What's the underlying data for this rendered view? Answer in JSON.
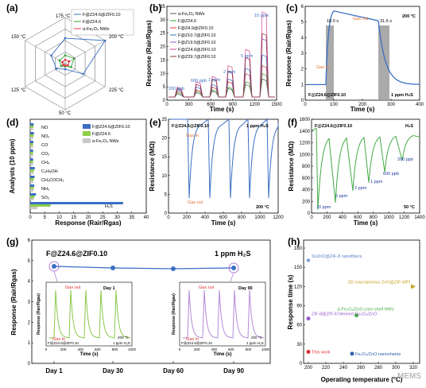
{
  "panels": {
    "a": {
      "label": "(a)",
      "legend": [
        "F@Z24.6@ZIF0.10",
        "F@Z24.6",
        "α-Fe₂O₃ NWs"
      ],
      "angles": [
        "175 °C",
        "200 °C",
        "225 °C",
        "50 °C",
        "125 °C",
        "150 °C"
      ],
      "series_colors": [
        "#3a6fc4",
        "#33a033",
        "#e03030"
      ]
    },
    "b": {
      "label": "(b)",
      "xlabel": "Time (s)",
      "ylabel": "Response (Rair/Rgas)",
      "legend": [
        "α-Fe₂O₃ NWs",
        "F@Z24.6",
        "F@Z4.9@ZIF0.10",
        "F@Z10.7@ZIF0.10",
        "F@Z19.5@ZIF0.10",
        "F@Z24.6@ZIF0.10",
        "F@Z29.7@ZIF0.10"
      ],
      "annotations": [
        "200 ppb",
        "600 ppb",
        "1 ppm",
        "2 ppm",
        "5 ppm",
        "10 ppm"
      ],
      "xticks": [
        "0",
        "300",
        "600",
        "900",
        "1200",
        "1500"
      ],
      "yticks": [
        "0",
        "5",
        "10",
        "15",
        "20",
        "25",
        "30",
        "35"
      ]
    },
    "c": {
      "label": "(c)",
      "xlabel": "Time (s)",
      "ylabel": "Response (Rair/Rgas)",
      "temp": "200 °C",
      "resp_time": "18.0 s",
      "rec_time": "31.6 s",
      "gas_in": "Gas in",
      "gas_out": "Gas out",
      "sample": "F@Z24.6@ZIF0.10",
      "conc": "1 ppm H₂S",
      "xticks": [
        "0",
        "100",
        "200",
        "300",
        "400"
      ],
      "yticks": [
        "0",
        "1",
        "2",
        "3",
        "4",
        "5",
        "6"
      ]
    },
    "d": {
      "label": "(d)",
      "xlabel": "Response (Rair/Rgas)",
      "ylabel": "Analysts (10 ppm)",
      "legend": [
        "F@Z24.6@ZIF0.10",
        "F@Z24.6",
        "α-Fe₂O₃ NWs"
      ],
      "gases": [
        "NO",
        "NO₂",
        "CO",
        "CO₂",
        "CH₄",
        "C₂H₅OH",
        "CH₃COCH₃",
        "NH₃",
        "SO₂",
        "H₂S"
      ],
      "xticks": [
        "0",
        "5",
        "10",
        "15",
        "20",
        "25",
        "30",
        "35",
        "40"
      ]
    },
    "e": {
      "label": "(e)",
      "xlabel": "Time (s)",
      "ylabel": "Resistance (MΩ)",
      "sample": "F@Z24.6@ZIF0.10",
      "conc": "1 ppm H₂S",
      "gas_in": "Gas in",
      "gas_out": "Gas out",
      "temp": "200 °C",
      "xticks": [
        "0",
        "200",
        "400",
        "600",
        "800",
        "1000",
        "1200"
      ],
      "yticks": [
        "0",
        "5",
        "10",
        "15",
        "20",
        "25"
      ]
    },
    "f": {
      "label": "(f)",
      "xlabel": "Time (s)",
      "ylabel": "Resistance (MΩ)",
      "sample": "F@Z24.6@ZIF0.10",
      "gas": "H₂S",
      "temp": "50 °C",
      "annotations": [
        "10 ppm",
        "5 ppm",
        "2 ppm",
        "1 ppm",
        "600 ppb",
        "200 ppb"
      ],
      "xticks": [
        "0",
        "200",
        "400",
        "600",
        "800",
        "1000",
        "1200",
        "1400"
      ],
      "yticks": [
        "0",
        "200",
        "400",
        "600",
        "800",
        "1000",
        "1200",
        "1400",
        "1600"
      ]
    },
    "g": {
      "label": "(g)",
      "ylabel": "Response (Rair/Rgas)",
      "sample": "F@Z24.6@ZIF0.10",
      "conc": "1 ppm H₂S",
      "xticks": [
        "Day 1",
        "Day 30",
        "Day 60",
        "Day 90"
      ],
      "yticks": [
        "0",
        "1",
        "2",
        "3",
        "4",
        "5",
        "6"
      ],
      "inset1": {
        "title": "Day 1",
        "gas_in": "Gas in",
        "gas_out": "Gas out",
        "sample": "F@Z24.6@ZIF0.10",
        "temp": "200 °C",
        "conc": "1 ppm H₂S",
        "xlabel": "Time (s)",
        "ylabel": "Response (Rair/Rgas)",
        "xticks": [
          "0",
          "200",
          "400",
          "600",
          "800",
          "1000"
        ]
      },
      "inset2": {
        "title": "Day 90",
        "gas_in": "Gas in",
        "gas_out": "Gas out",
        "sample": "F@Z24.6@ZIF0.10",
        "temp": "200 °C",
        "conc": "1 ppm H₂S",
        "xlabel": "Time (s)",
        "ylabel": "Response (Rair/Rgas)",
        "xticks": [
          "0",
          "200",
          "400",
          "600",
          "800",
          "1000"
        ]
      }
    },
    "h": {
      "label": "(h)",
      "xlabel": "Operating temperature (°C)",
      "ylabel": "Response time (s)",
      "xticks": [
        "200",
        "220",
        "240",
        "260",
        "280",
        "300",
        "320"
      ],
      "yticks": [
        "0",
        "30",
        "60",
        "90",
        "120",
        "150",
        "180"
      ],
      "points": [
        {
          "label": "SnZnO@ZIF-8 nanofibers",
          "color": "#5a7fd0",
          "x": 200,
          "y": 160
        },
        {
          "label": "3D macroporous ZnO@ZIF-8/Pt",
          "color": "#c8a020",
          "x": 320,
          "y": 120
        },
        {
          "label": "α-Fe₂O₃/ZnO core-shell NWs",
          "color": "#44aa44",
          "x": 255,
          "y": 75
        },
        {
          "label": "ZIF-8@ZIF-67derived Co₃O₄/ZnO",
          "color": "#9a5acc",
          "x": 200,
          "y": 70
        },
        {
          "label": "This work",
          "color": "#e03030",
          "x": 200,
          "y": 18
        },
        {
          "label": "Fe₂O₃/ZnO nanosheets",
          "color": "#3060b0",
          "x": 250,
          "y": 15
        }
      ]
    }
  },
  "watermark": "MEMS"
}
